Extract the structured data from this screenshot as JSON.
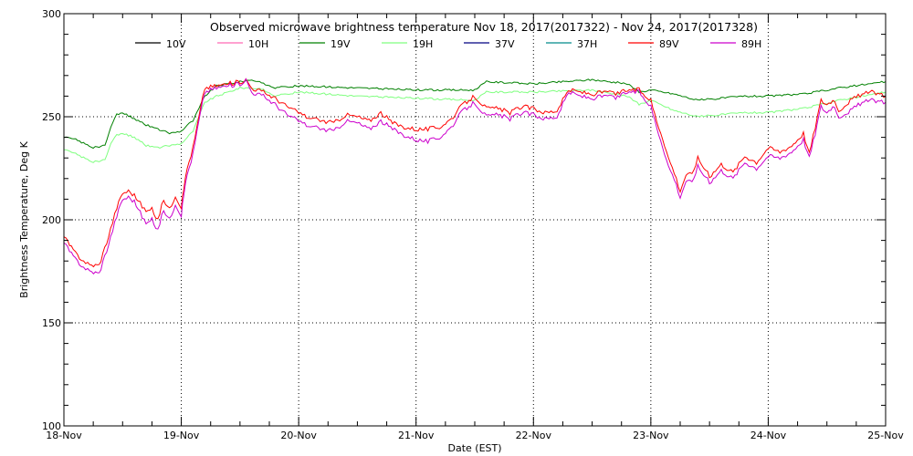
{
  "chart_data": {
    "type": "line",
    "title": "Observed microwave brightness temperature Nov 18, 2017(2017322) - Nov 24, 2017(2017328)",
    "xlabel": "Date (EST)",
    "ylabel": "Brightness Temperature, Deg K",
    "xlim": [
      0,
      7
    ],
    "ylim": [
      100,
      300
    ],
    "x_ticks": [
      0,
      1,
      2,
      3,
      4,
      5,
      6,
      7
    ],
    "x_tick_labels": [
      "18-Nov",
      "19-Nov",
      "20-Nov",
      "21-Nov",
      "22-Nov",
      "23-Nov",
      "24-Nov",
      "25-Nov"
    ],
    "y_ticks": [
      100,
      150,
      200,
      250,
      300
    ],
    "y_tick_labels": [
      "100",
      "150",
      "200",
      "250",
      "300"
    ],
    "grid": "dotted",
    "legend_position": "top",
    "series": [
      {
        "name": "10V",
        "color": "#000000",
        "x": [],
        "y": []
      },
      {
        "name": "10H",
        "color": "#ff69b4",
        "x": [],
        "y": []
      },
      {
        "name": "19V",
        "color": "#008000",
        "x": [
          0,
          0.1,
          0.25,
          0.35,
          0.4,
          0.45,
          0.5,
          0.6,
          0.7,
          0.8,
          0.9,
          1.0,
          1.05,
          1.1,
          1.2,
          1.3,
          1.4,
          1.5,
          1.6,
          1.7,
          1.8,
          2.0,
          2.5,
          3.0,
          3.5,
          3.6,
          4.0,
          4.5,
          4.8,
          4.9,
          5.0,
          5.2,
          5.4,
          5.6,
          5.8,
          6.0,
          6.3,
          6.6,
          7.0
        ],
        "y": [
          240,
          239,
          235,
          236,
          245,
          251,
          252,
          249,
          246,
          244,
          242,
          243,
          246,
          248,
          260,
          265,
          266,
          267,
          268,
          266,
          264,
          265,
          264,
          263,
          263,
          267,
          266,
          268,
          266,
          262,
          263,
          261,
          258,
          259,
          260,
          260,
          261,
          264,
          267
        ]
      },
      {
        "name": "19H",
        "color": "#7fff7f",
        "x": [
          0,
          0.1,
          0.25,
          0.35,
          0.4,
          0.45,
          0.5,
          0.6,
          0.7,
          0.8,
          0.9,
          1.0,
          1.05,
          1.1,
          1.2,
          1.3,
          1.4,
          1.5,
          1.6,
          1.7,
          1.8,
          2.0,
          2.5,
          3.0,
          3.5,
          3.6,
          4.0,
          4.5,
          4.8,
          4.9,
          5.0,
          5.2,
          5.4,
          5.6,
          5.8,
          6.0,
          6.3,
          6.6,
          7.0
        ],
        "y": [
          234,
          232,
          228,
          229,
          237,
          241,
          242,
          240,
          236,
          235,
          236,
          237,
          240,
          243,
          257,
          260,
          262,
          264,
          264,
          263,
          260,
          262,
          260,
          259,
          258,
          262,
          262,
          263,
          260,
          256,
          258,
          253,
          250,
          251,
          252,
          252,
          254,
          258,
          262
        ]
      },
      {
        "name": "37V",
        "color": "#000080",
        "x": [],
        "y": []
      },
      {
        "name": "37H",
        "color": "#008b8b",
        "x": [],
        "y": []
      },
      {
        "name": "89V",
        "color": "#ff0000",
        "x": [
          0,
          0.08,
          0.15,
          0.22,
          0.3,
          0.38,
          0.45,
          0.5,
          0.55,
          0.6,
          0.7,
          0.75,
          0.8,
          0.85,
          0.9,
          0.95,
          1.0,
          1.02,
          1.05,
          1.1,
          1.15,
          1.2,
          1.3,
          1.4,
          1.5,
          1.55,
          1.6,
          1.7,
          1.8,
          1.9,
          2.0,
          2.1,
          2.2,
          2.3,
          2.4,
          2.5,
          2.6,
          2.7,
          2.8,
          2.9,
          3.0,
          3.1,
          3.2,
          3.3,
          3.4,
          3.5,
          3.6,
          3.7,
          3.8,
          3.9,
          4.0,
          4.1,
          4.2,
          4.3,
          4.4,
          4.5,
          4.6,
          4.7,
          4.8,
          4.9,
          5.0,
          5.05,
          5.1,
          5.15,
          5.2,
          5.25,
          5.3,
          5.35,
          5.4,
          5.5,
          5.6,
          5.7,
          5.8,
          5.9,
          6.0,
          6.1,
          6.2,
          6.3,
          6.35,
          6.4,
          6.45,
          6.5,
          6.55,
          6.6,
          6.7,
          6.8,
          6.9,
          7.0
        ],
        "y": [
          192,
          185,
          181,
          178,
          178,
          192,
          206,
          213,
          214,
          212,
          204,
          205,
          200,
          210,
          205,
          212,
          206,
          215,
          225,
          235,
          250,
          264,
          265,
          266,
          267,
          268,
          264,
          262,
          259,
          255,
          252,
          249,
          248,
          247,
          251,
          250,
          248,
          252,
          247,
          245,
          244,
          244,
          245,
          249,
          256,
          260,
          254,
          254,
          252,
          255,
          254,
          252,
          253,
          263,
          262,
          261,
          262,
          261,
          263,
          263,
          258,
          248,
          240,
          230,
          223,
          214,
          222,
          222,
          230,
          221,
          227,
          223,
          231,
          228,
          235,
          233,
          236,
          242,
          232,
          245,
          258,
          256,
          258,
          253,
          258,
          261,
          262,
          260
        ]
      },
      {
        "name": "89H",
        "color": "#cc00cc",
        "x": [
          0,
          0.08,
          0.15,
          0.22,
          0.3,
          0.38,
          0.45,
          0.5,
          0.55,
          0.6,
          0.7,
          0.75,
          0.8,
          0.85,
          0.9,
          0.95,
          1.0,
          1.02,
          1.05,
          1.1,
          1.15,
          1.2,
          1.3,
          1.4,
          1.5,
          1.55,
          1.6,
          1.7,
          1.8,
          1.9,
          2.0,
          2.1,
          2.2,
          2.3,
          2.4,
          2.5,
          2.6,
          2.7,
          2.8,
          2.9,
          3.0,
          3.1,
          3.2,
          3.3,
          3.4,
          3.5,
          3.6,
          3.7,
          3.8,
          3.9,
          4.0,
          4.1,
          4.2,
          4.3,
          4.4,
          4.5,
          4.6,
          4.7,
          4.8,
          4.9,
          5.0,
          5.05,
          5.1,
          5.15,
          5.2,
          5.25,
          5.3,
          5.35,
          5.4,
          5.5,
          5.6,
          5.7,
          5.8,
          5.9,
          6.0,
          6.1,
          6.2,
          6.3,
          6.35,
          6.4,
          6.45,
          6.5,
          6.55,
          6.6,
          6.7,
          6.8,
          6.9,
          7.0
        ],
        "y": [
          189,
          182,
          178,
          175,
          174,
          188,
          202,
          210,
          211,
          209,
          198,
          200,
          195,
          205,
          200,
          208,
          202,
          212,
          222,
          232,
          248,
          262,
          264,
          265,
          266,
          268,
          262,
          260,
          256,
          251,
          248,
          245,
          244,
          243,
          248,
          247,
          244,
          248,
          244,
          241,
          239,
          238,
          240,
          245,
          253,
          257,
          250,
          251,
          249,
          252,
          251,
          249,
          250,
          262,
          260,
          259,
          260,
          259,
          262,
          262,
          255,
          245,
          236,
          226,
          220,
          211,
          219,
          218,
          226,
          218,
          224,
          220,
          228,
          225,
          231,
          230,
          233,
          239,
          230,
          242,
          255,
          252,
          255,
          250,
          253,
          257,
          258,
          257
        ]
      }
    ]
  }
}
